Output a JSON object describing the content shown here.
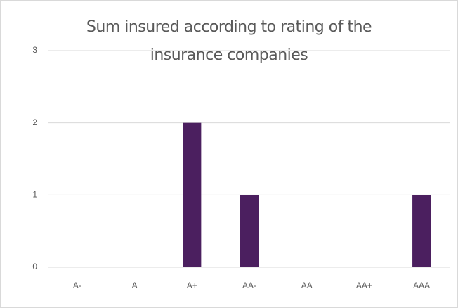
{
  "chart_data": {
    "type": "bar",
    "title": "Sum insured according to rating of the insurance companies",
    "categories": [
      "A-",
      "A",
      "A+",
      "AA-",
      "AA",
      "AA+",
      "AAA"
    ],
    "values": [
      0,
      0,
      2,
      1,
      0,
      0,
      1
    ],
    "color": "#4b1f5f",
    "ylim": [
      0,
      3
    ],
    "yticks": [
      0,
      1,
      2,
      3
    ],
    "grid": true
  }
}
